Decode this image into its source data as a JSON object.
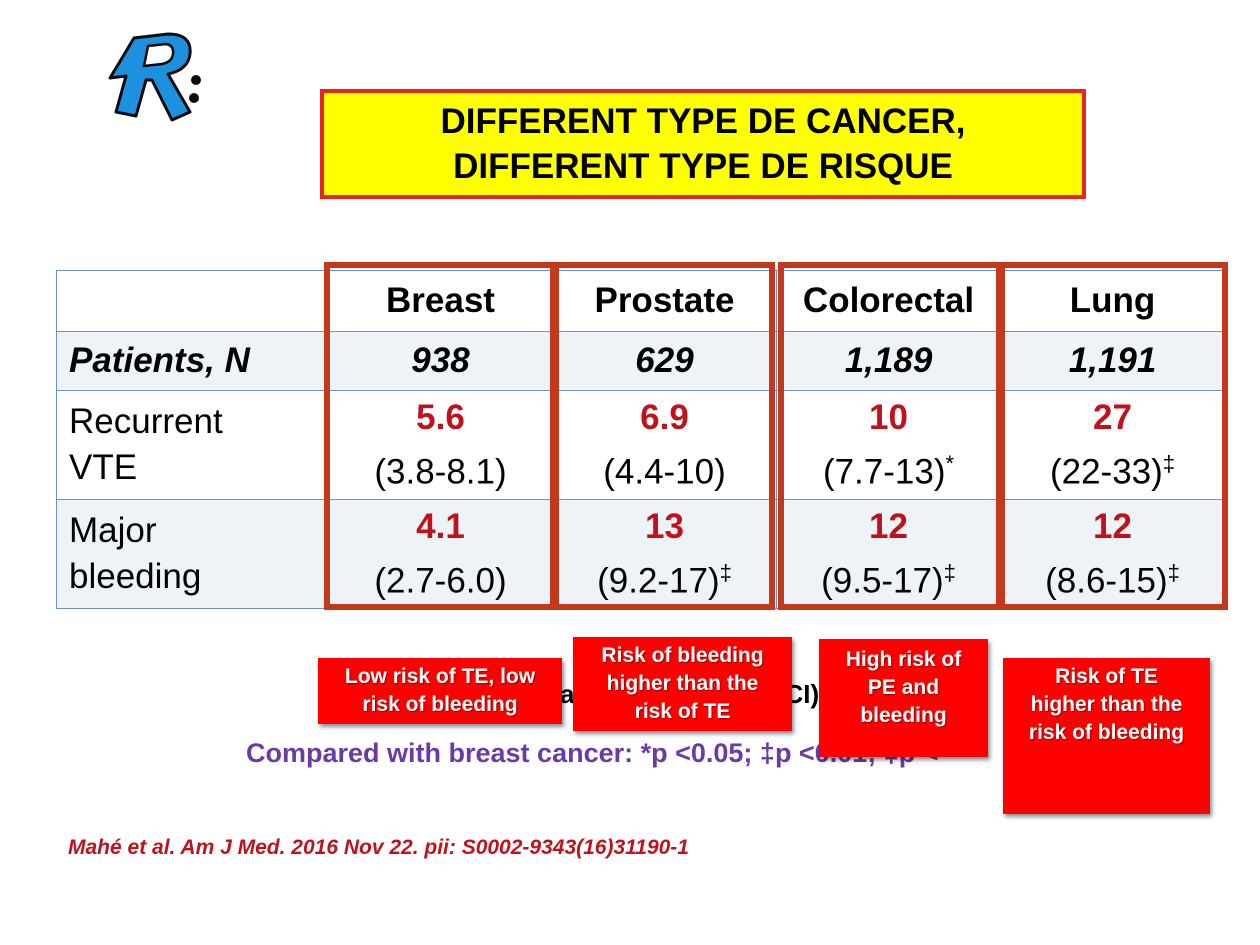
{
  "colors": {
    "title_bg": "#ffff00",
    "title_border": "#e8241c",
    "value_red": "#c0121c",
    "column_highlight": "#c4391c",
    "note_bg": "#ff0000",
    "legend_purple": "#6b3aa6"
  },
  "logo": {
    "icon": "stylized-R-logo-icon"
  },
  "title": {
    "line1": "DIFFERENT TYPE DE CANCER,",
    "line2": "DIFFERENT TYPE DE RISQUE"
  },
  "table": {
    "columns": [
      "Breast",
      "Prostate",
      "Colorectal",
      "Lung"
    ],
    "rows": [
      {
        "label": "Patients, N",
        "cells": [
          {
            "value": "938"
          },
          {
            "value": "629"
          },
          {
            "value": "1,189"
          },
          {
            "value": "1,191"
          }
        ]
      },
      {
        "label_line1": "Recurrent",
        "label_line2": "VTE",
        "cells": [
          {
            "value": "5.6",
            "ci": "(3.8-8.1)",
            "mark": ""
          },
          {
            "value": "6.9",
            "ci": "(4.4-10)",
            "mark": ""
          },
          {
            "value": "10",
            "ci": "(7.7-13)",
            "mark": "*"
          },
          {
            "value": "27",
            "ci": "(22-33)",
            "mark": "‡"
          }
        ]
      },
      {
        "label_line1": "Major",
        "label_line2": "bleeding",
        "cells": [
          {
            "value": "4.1",
            "ci": "(2.7-6.0)",
            "mark": ""
          },
          {
            "value": "13",
            "ci": "(9.2-17)",
            "mark": "‡"
          },
          {
            "value": "12",
            "ci": "(9.5-17)",
            "mark": "‡"
          },
          {
            "value": "12",
            "ci": "(8.6-15)",
            "mark": "‡"
          }
        ]
      }
    ]
  },
  "partially_hidden_text": {
    "fragment_a": "a",
    "fragment_b": "CI)"
  },
  "legend": "Compared with breast cancer: *p <0.05;  ‡p <0.01; ‡p <",
  "notes": [
    {
      "line1": "Low risk of TE, low",
      "line2": "risk of bleeding",
      "line3": ""
    },
    {
      "line1": "Risk of bleeding",
      "line2": "higher than the",
      "line3": "risk of TE"
    },
    {
      "line1": "High risk of",
      "line2": "PE and",
      "line3": "bleeding"
    },
    {
      "line1": "Risk of TE",
      "line2": "higher than the",
      "line3": "risk of bleeding"
    }
  ],
  "citation": "Mahé et al. Am J Med. 2016 Nov 22. pii: S0002-9343(16)31190-1"
}
